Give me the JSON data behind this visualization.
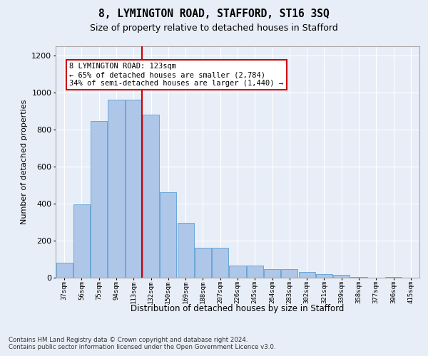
{
  "title1": "8, LYMINGTON ROAD, STAFFORD, ST16 3SQ",
  "title2": "Size of property relative to detached houses in Stafford",
  "xlabel": "Distribution of detached houses by size in Stafford",
  "ylabel": "Number of detached properties",
  "categories": [
    "37sqm",
    "56sqm",
    "75sqm",
    "94sqm",
    "113sqm",
    "132sqm",
    "150sqm",
    "169sqm",
    "188sqm",
    "207sqm",
    "226sqm",
    "245sqm",
    "264sqm",
    "283sqm",
    "302sqm",
    "321sqm",
    "339sqm",
    "358sqm",
    "377sqm",
    "396sqm",
    "415sqm"
  ],
  "values": [
    80,
    395,
    845,
    960,
    960,
    880,
    460,
    295,
    160,
    160,
    65,
    65,
    45,
    45,
    30,
    20,
    15,
    5,
    0,
    5,
    0
  ],
  "bar_color": "#aec6e8",
  "bar_edge_color": "#5a9fd4",
  "vline_x_idx": 4.5,
  "vline_color": "#cc0000",
  "annotation_text": "8 LYMINGTON ROAD: 123sqm\n← 65% of detached houses are smaller (2,784)\n34% of semi-detached houses are larger (1,440) →",
  "annotation_box_color": "#ffffff",
  "annotation_box_edge": "#cc0000",
  "ylim": [
    0,
    1250
  ],
  "yticks": [
    0,
    200,
    400,
    600,
    800,
    1000,
    1200
  ],
  "footnote1": "Contains HM Land Registry data © Crown copyright and database right 2024.",
  "footnote2": "Contains public sector information licensed under the Open Government Licence v3.0.",
  "bg_color": "#e8eef7",
  "plot_bg_color": "#e8eef7",
  "grid_color": "#ffffff"
}
